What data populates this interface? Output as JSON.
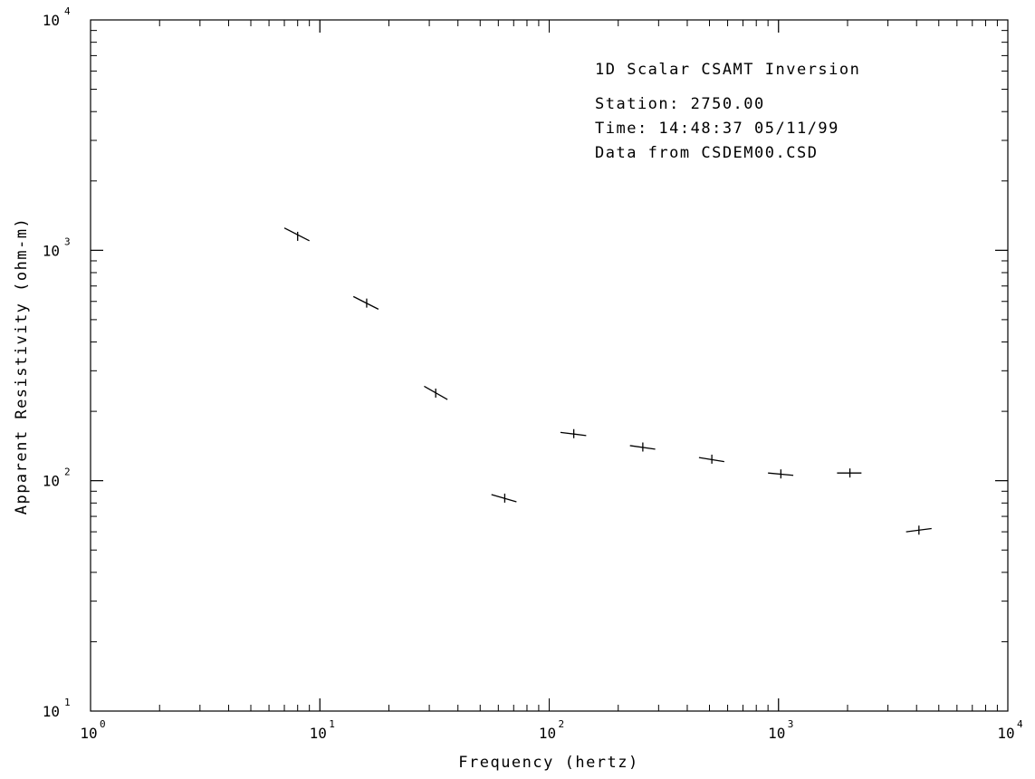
{
  "chart_data": {
    "type": "scatter",
    "xscale": "log",
    "yscale": "log",
    "xlim": [
      1,
      10000
    ],
    "ylim": [
      10,
      10000
    ],
    "grid": false,
    "xlabel": "Frequency (hertz)",
    "ylabel": "Apparent Resistivity (ohm-m)",
    "x_ticks": [
      {
        "base": "10",
        "exp": "0",
        "value": 1
      },
      {
        "base": "10",
        "exp": "1",
        "value": 10
      },
      {
        "base": "10",
        "exp": "2",
        "value": 100
      },
      {
        "base": "10",
        "exp": "3",
        "value": 1000
      },
      {
        "base": "10",
        "exp": "4",
        "value": 10000
      }
    ],
    "y_ticks": [
      {
        "base": "10",
        "exp": "1",
        "value": 10
      },
      {
        "base": "10",
        "exp": "2",
        "value": 100
      },
      {
        "base": "10",
        "exp": "3",
        "value": 1000
      },
      {
        "base": "10",
        "exp": "4",
        "value": 10000
      }
    ],
    "annotation_lines": [
      "1D Scalar CSAMT Inversion",
      "Station:   2750.00",
      "Time: 14:48:37   05/11/99",
      "Data from CSDEM00.CSD"
    ],
    "points": [
      {
        "x": 8,
        "y": 1150,
        "x_err": [
          7,
          9
        ],
        "y_err": [
          1250,
          1100
        ]
      },
      {
        "x": 16,
        "y": 590,
        "x_err": [
          14,
          18
        ],
        "y_err": [
          630,
          555
        ]
      },
      {
        "x": 32,
        "y": 240,
        "x_err": [
          28.5,
          36
        ],
        "y_err": [
          257,
          225
        ]
      },
      {
        "x": 64,
        "y": 84,
        "x_err": [
          56,
          72
        ],
        "y_err": [
          87,
          81
        ]
      },
      {
        "x": 128,
        "y": 160,
        "x_err": [
          112,
          145
        ],
        "y_err": [
          162,
          157
        ]
      },
      {
        "x": 256,
        "y": 140,
        "x_err": [
          225,
          290
        ],
        "y_err": [
          142,
          137
        ]
      },
      {
        "x": 512,
        "y": 124,
        "x_err": [
          450,
          580
        ],
        "y_err": [
          126,
          121
        ]
      },
      {
        "x": 1024,
        "y": 107,
        "x_err": [
          900,
          1160
        ],
        "y_err": [
          108,
          105.5
        ]
      },
      {
        "x": 2048,
        "y": 108,
        "x_err": [
          1800,
          2300
        ],
        "y_err": [
          108,
          108
        ]
      },
      {
        "x": 4096,
        "y": 61,
        "x_err": [
          3600,
          4650
        ],
        "y_err": [
          60,
          62
        ]
      }
    ]
  }
}
